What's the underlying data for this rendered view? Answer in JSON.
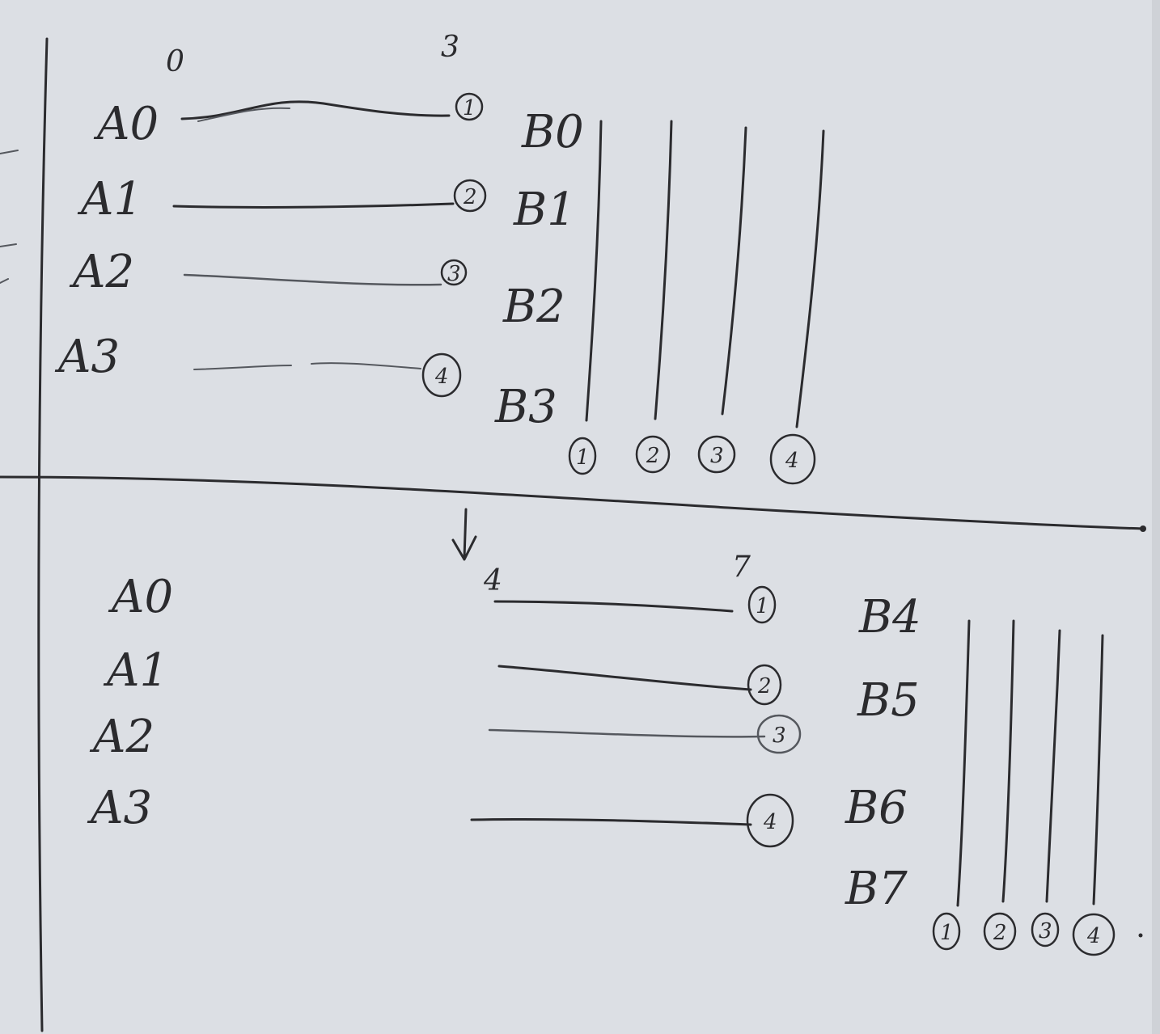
{
  "top": {
    "start_tick": "0",
    "end_tick": "3",
    "a_labels": [
      "A0",
      "A1",
      "A2",
      "A3"
    ],
    "circle_labels": [
      "1",
      "2",
      "3",
      "4"
    ],
    "b_labels": [
      "B0",
      "B1",
      "B2",
      "B3"
    ],
    "column_labels": [
      "1",
      "2",
      "3",
      "4"
    ]
  },
  "bottom": {
    "start_tick": "4",
    "end_tick": "7",
    "a_labels": [
      "A0",
      "A1",
      "A2",
      "A3"
    ],
    "circle_labels": [
      "1",
      "2",
      "3",
      "4"
    ],
    "b_labels": [
      "B4",
      "B5",
      "B6",
      "B7"
    ],
    "column_labels": [
      "1",
      "2",
      "3",
      "4"
    ]
  },
  "ink_color": "#2b2b2e",
  "paper_color": "#dcdfe4"
}
